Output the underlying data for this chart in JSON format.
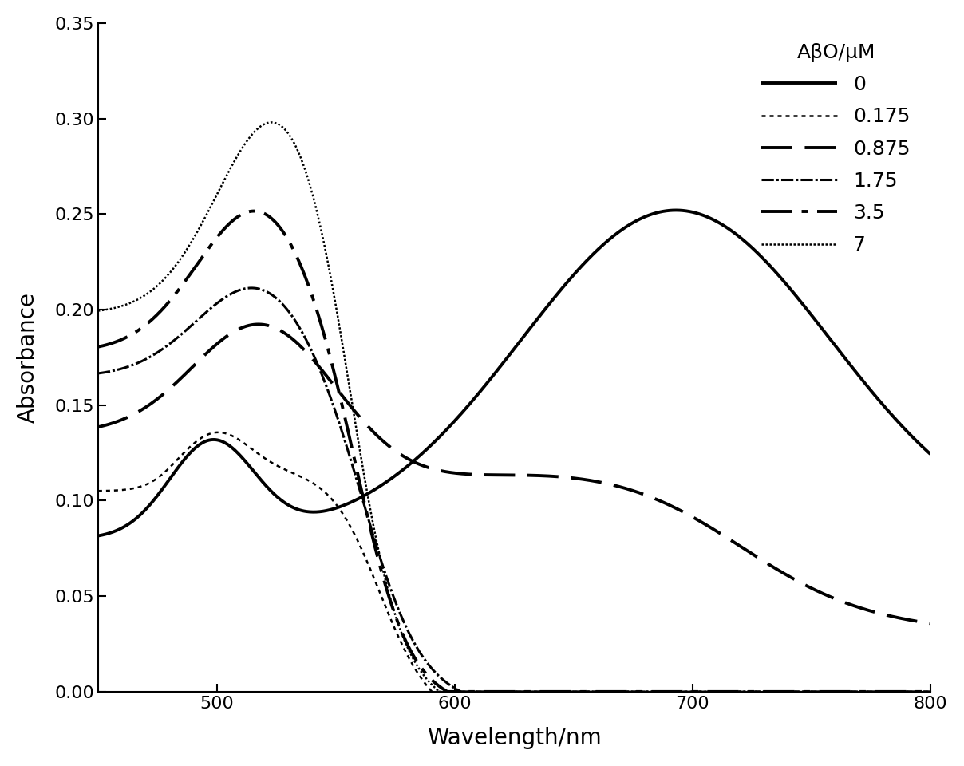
{
  "xlabel": "Wavelength/nm",
  "ylabel": "Absorbance",
  "xlim": [
    450,
    800
  ],
  "ylim": [
    0.0,
    0.35
  ],
  "xticks": [
    500,
    600,
    700,
    800
  ],
  "yticks": [
    0.0,
    0.05,
    0.1,
    0.15,
    0.2,
    0.25,
    0.3,
    0.35
  ],
  "legend_title": "AβO/μM",
  "legend_labels": [
    "0",
    "0.175",
    "0.875",
    "1.75",
    "3.5",
    "7"
  ],
  "background_color": "#ffffff",
  "font_size": 18,
  "tick_font_size": 16,
  "linewidths": [
    2.8,
    1.8,
    2.8,
    2.2,
    2.8,
    1.8
  ]
}
